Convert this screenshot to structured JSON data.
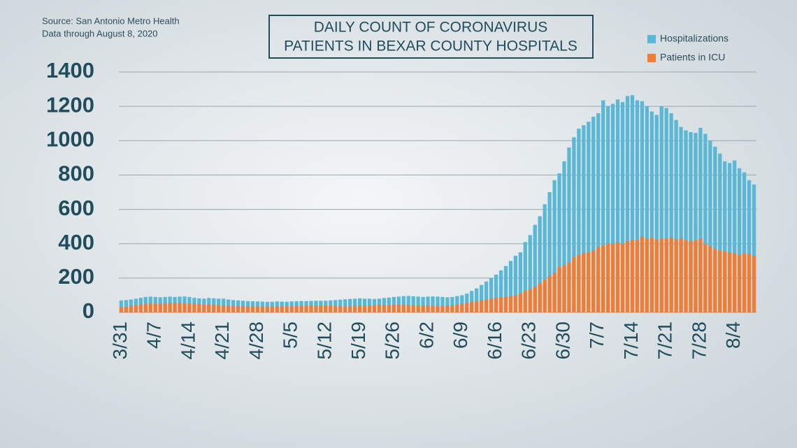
{
  "chart_data": {
    "type": "bar",
    "title": [
      "DAILY COUNT OF CORONAVIRUS",
      "PATIENTS IN BEXAR COUNTY HOSPITALS"
    ],
    "annotations": [
      "Source: San Antonio Metro Health",
      "Data through August 8, 2020"
    ],
    "categories": [
      "3/31",
      null,
      null,
      null,
      null,
      null,
      null,
      "4/7",
      null,
      null,
      null,
      null,
      null,
      null,
      "4/14",
      null,
      null,
      null,
      null,
      null,
      null,
      "4/21",
      null,
      null,
      null,
      null,
      null,
      null,
      "4/28",
      null,
      null,
      null,
      null,
      null,
      null,
      "5/5",
      null,
      null,
      null,
      null,
      null,
      null,
      "5/12",
      null,
      null,
      null,
      null,
      null,
      null,
      "5/19",
      null,
      null,
      null,
      null,
      null,
      null,
      "5/26",
      null,
      null,
      null,
      null,
      null,
      null,
      "6/2",
      null,
      null,
      null,
      null,
      null,
      null,
      "6/9",
      null,
      null,
      null,
      null,
      null,
      null,
      "6/16",
      null,
      null,
      null,
      null,
      null,
      null,
      "6/23",
      null,
      null,
      null,
      null,
      null,
      null,
      "6/30",
      null,
      null,
      null,
      null,
      null,
      null,
      "7/7",
      null,
      null,
      null,
      null,
      null,
      null,
      "7/14",
      null,
      null,
      null,
      null,
      null,
      null,
      "7/21",
      null,
      null,
      null,
      null,
      null,
      null,
      "7/28",
      null,
      null,
      null,
      null,
      null,
      null,
      "8/4",
      null,
      null,
      null,
      null
    ],
    "series": [
      {
        "name": "Hospitalizations",
        "color": "#5ab8d6",
        "values": [
          70,
          72,
          75,
          80,
          85,
          90,
          92,
          90,
          88,
          90,
          92,
          90,
          92,
          93,
          90,
          85,
          82,
          80,
          84,
          82,
          80,
          80,
          75,
          72,
          70,
          68,
          66,
          65,
          64,
          63,
          62,
          62,
          64,
          63,
          62,
          64,
          65,
          66,
          66,
          67,
          68,
          68,
          68,
          70,
          72,
          74,
          76,
          78,
          80,
          82,
          80,
          80,
          78,
          80,
          84,
          86,
          90,
          92,
          95,
          96,
          94,
          92,
          90,
          92,
          93,
          92,
          90,
          88,
          90,
          95,
          100,
          110,
          125,
          140,
          160,
          180,
          200,
          220,
          245,
          270,
          300,
          330,
          350,
          410,
          450,
          510,
          560,
          630,
          700,
          770,
          810,
          880,
          960,
          1020,
          1070,
          1090,
          1110,
          1140,
          1160,
          1235,
          1200,
          1215,
          1240,
          1225,
          1260,
          1265,
          1235,
          1230,
          1200,
          1170,
          1150,
          1200,
          1190,
          1160,
          1120,
          1080,
          1060,
          1050,
          1045,
          1075,
          1040,
          1000,
          965,
          925,
          880,
          870,
          885,
          840,
          815,
          770,
          745
        ]
      },
      {
        "name": "Patients in ICU",
        "color": "#ef7d36",
        "values": [
          30,
          32,
          38,
          42,
          46,
          50,
          52,
          52,
          50,
          52,
          54,
          55,
          55,
          54,
          52,
          50,
          48,
          46,
          45,
          44,
          42,
          40,
          38,
          38,
          36,
          36,
          35,
          35,
          35,
          34,
          34,
          34,
          35,
          35,
          36,
          36,
          38,
          38,
          40,
          40,
          40,
          40,
          42,
          40,
          38,
          36,
          35,
          36,
          38,
          40,
          40,
          40,
          42,
          44,
          42,
          42,
          44,
          44,
          44,
          42,
          42,
          40,
          40,
          40,
          38,
          38,
          36,
          38,
          40,
          45,
          50,
          55,
          60,
          65,
          70,
          75,
          80,
          85,
          90,
          90,
          95,
          100,
          110,
          125,
          135,
          150,
          170,
          190,
          210,
          230,
          265,
          275,
          290,
          320,
          335,
          345,
          350,
          360,
          380,
          390,
          400,
          400,
          405,
          400,
          415,
          420,
          420,
          440,
          430,
          435,
          425,
          430,
          430,
          435,
          425,
          430,
          420,
          415,
          420,
          430,
          400,
          385,
          370,
          360,
          355,
          350,
          345,
          335,
          345,
          340,
          330
        ]
      }
    ],
    "ylim": [
      0,
      1400
    ],
    "yticks": [
      0,
      200,
      400,
      600,
      800,
      1000,
      1200,
      1400
    ],
    "grid": true,
    "stacked": false,
    "legend": "top-right"
  }
}
